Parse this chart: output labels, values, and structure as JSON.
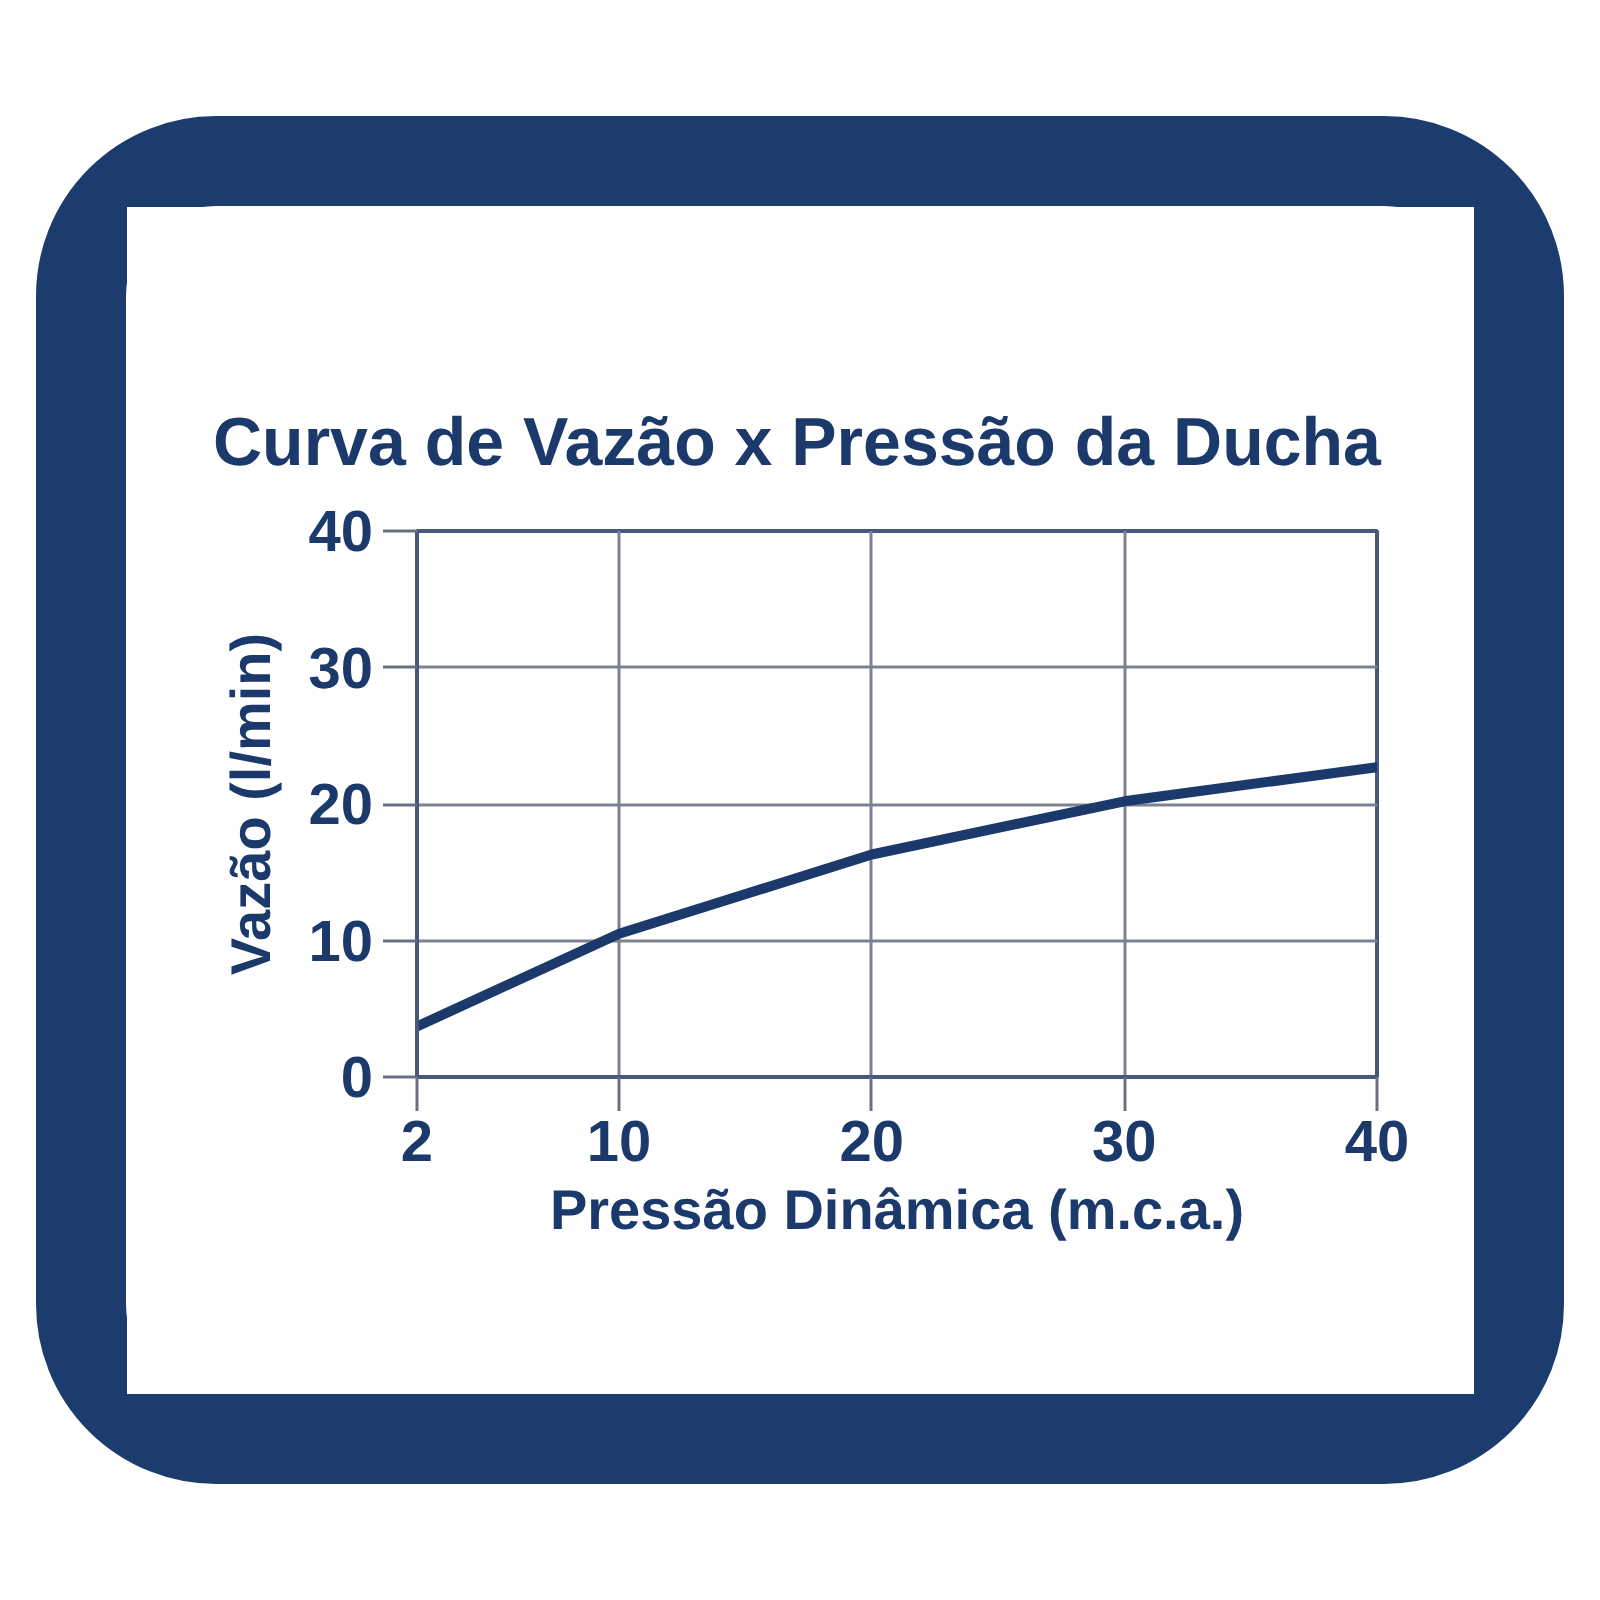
{
  "chart_data": {
    "type": "line",
    "title": "Curva de Vazão x Pressão da Ducha",
    "xlabel": "Pressão Dinâmica (m.c.a.)",
    "ylabel": "Vazão (l/min)",
    "x": [
      2,
      10,
      20,
      30,
      40
    ],
    "series": [
      {
        "color": "#1b3a6b",
        "values": [
          3.7,
          10.5,
          16.3,
          20.2,
          22.7
        ]
      }
    ],
    "xlim": [
      2,
      40
    ],
    "ylim": [
      0,
      40
    ],
    "xticks": [
      2,
      10,
      20,
      30,
      40
    ],
    "yticks": [
      0,
      10,
      20,
      30,
      40
    ],
    "grid": true,
    "line_style": "solid"
  }
}
